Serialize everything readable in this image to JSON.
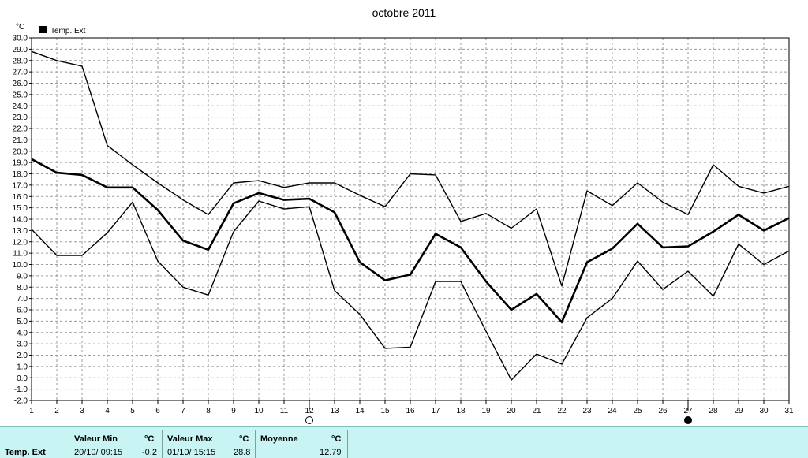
{
  "chart_data": {
    "type": "line",
    "title": "octobre 2011",
    "ylabel": "°C",
    "xlabel": "",
    "legend": {
      "label": "Temp. Ext",
      "placement": "top-left"
    },
    "ylim": [
      -2.0,
      30.0
    ],
    "ytick_step": 1.0,
    "grid": true,
    "x": [
      1,
      2,
      3,
      4,
      5,
      6,
      7,
      8,
      9,
      10,
      11,
      12,
      13,
      14,
      15,
      16,
      17,
      18,
      19,
      20,
      21,
      22,
      23,
      24,
      25,
      26,
      27,
      28,
      29,
      30,
      31
    ],
    "series": [
      {
        "role": "max",
        "color": "#000000",
        "values": [
          28.8,
          28.0,
          27.5,
          20.5,
          18.8,
          17.2,
          15.7,
          14.4,
          17.2,
          17.4,
          16.8,
          17.2,
          17.2,
          16.1,
          15.1,
          18.0,
          17.9,
          13.8,
          14.5,
          13.2,
          14.9,
          8.1,
          16.5,
          15.2,
          17.2,
          15.5,
          14.4,
          18.8,
          16.9,
          16.3,
          16.9
        ]
      },
      {
        "role": "mean",
        "color": "#000000",
        "values": [
          19.3,
          18.1,
          17.9,
          16.8,
          16.8,
          14.8,
          12.1,
          11.3,
          15.4,
          16.3,
          15.7,
          15.8,
          14.6,
          10.2,
          8.6,
          9.1,
          12.7,
          11.5,
          8.5,
          6.0,
          7.4,
          4.9,
          10.2,
          11.4,
          13.6,
          11.5,
          11.6,
          12.9,
          14.4,
          13.0,
          14.1
        ]
      },
      {
        "role": "min",
        "color": "#000000",
        "values": [
          13.1,
          10.8,
          10.8,
          12.8,
          15.5,
          10.3,
          8.0,
          7.3,
          12.9,
          15.6,
          14.9,
          15.1,
          7.7,
          5.6,
          2.6,
          2.7,
          8.5,
          8.5,
          4.1,
          -0.2,
          2.1,
          1.2,
          5.3,
          7.0,
          10.3,
          7.8,
          9.4,
          7.2,
          11.8,
          10.0,
          11.2
        ]
      }
    ],
    "moon_markers": [
      {
        "day": 12,
        "phase": "full"
      },
      {
        "day": 27,
        "phase": "new"
      }
    ]
  },
  "stats": {
    "row_label": "Temp. Ext",
    "min": {
      "header": "Valeur Min",
      "unit": "°C",
      "datetime": "20/10/  09:15",
      "value": "-0.2"
    },
    "max": {
      "header": "Valeur Max",
      "unit": "°C",
      "datetime": "01/10/  15:15",
      "value": "28.8"
    },
    "mean": {
      "header": "Moyenne",
      "unit": "°C",
      "value": "12.79"
    }
  }
}
